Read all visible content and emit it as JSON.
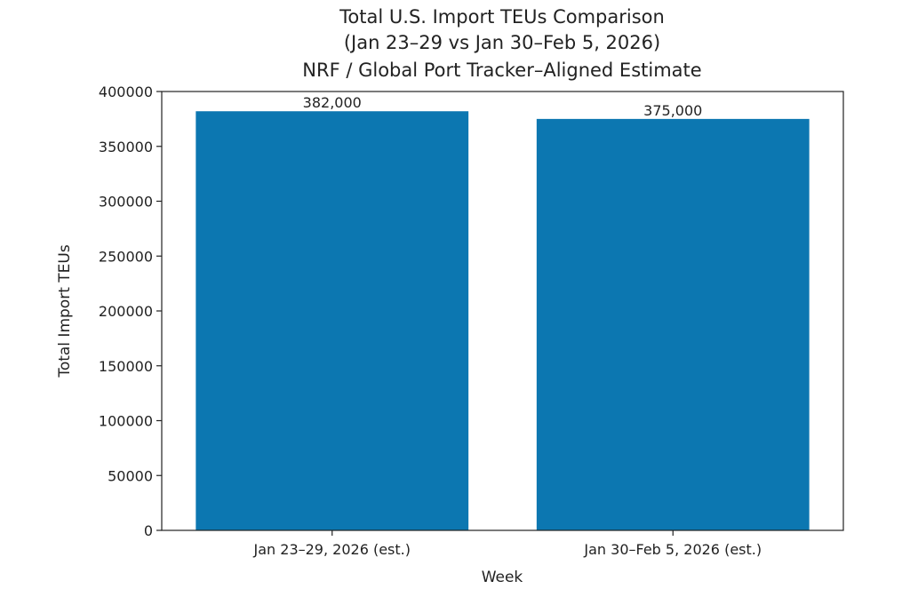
{
  "chart_data": {
    "type": "bar",
    "title": [
      "Total U.S. Import TEUs Comparison",
      "(Jan 23–29 vs Jan 30–Feb 5, 2026)",
      "NRF / Global Port Tracker–Aligned Estimate"
    ],
    "xlabel": "Week",
    "ylabel": "Total Import TEUs",
    "categories": [
      "Jan 23–29, 2026 (est.)",
      "Jan 30–Feb 5, 2026 (est.)"
    ],
    "values": [
      382000,
      375000
    ],
    "data_labels": [
      "382,000",
      "375,000"
    ],
    "ylim": [
      0,
      400000
    ],
    "yticks": [
      0,
      50000,
      100000,
      150000,
      200000,
      250000,
      300000,
      350000,
      400000
    ],
    "grid": false,
    "legend": "none",
    "bar_color": "#0c77b1"
  }
}
